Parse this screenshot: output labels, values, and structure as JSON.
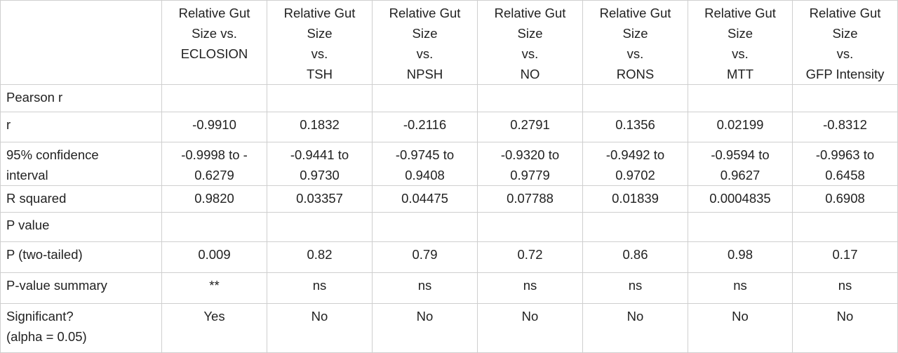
{
  "table": {
    "header": [
      [
        "Relative Gut",
        "Size vs.",
        "ECLOSION"
      ],
      [
        "Relative Gut",
        "Size",
        "vs.",
        "TSH"
      ],
      [
        "Relative Gut",
        "Size",
        "vs.",
        "NPSH"
      ],
      [
        "Relative Gut",
        "Size",
        "vs.",
        "NO"
      ],
      [
        "Relative Gut",
        "Size",
        "vs.",
        "RONS"
      ],
      [
        "Relative Gut",
        "Size",
        "vs.",
        "MTT"
      ],
      [
        "Relative Gut",
        "Size",
        "vs.",
        "GFP Intensity"
      ]
    ],
    "rows": [
      {
        "label": [
          "Pearson r"
        ]
      },
      {
        "label": [
          "r"
        ],
        "cells": [
          [
            "-0.9910"
          ],
          [
            "0.1832"
          ],
          [
            "-0.2116"
          ],
          [
            "0.2791"
          ],
          [
            "0.1356"
          ],
          [
            "0.02199"
          ],
          [
            "-0.8312"
          ]
        ]
      },
      {
        "label": [
          "95% confidence",
          "interval"
        ],
        "cells": [
          [
            "-0.9998 to -",
            "0.6279"
          ],
          [
            "-0.9441 to",
            "0.9730"
          ],
          [
            "-0.9745 to",
            "0.9408"
          ],
          [
            "-0.9320 to",
            "0.9779"
          ],
          [
            "-0.9492 to",
            "0.9702"
          ],
          [
            "-0.9594 to",
            "0.9627"
          ],
          [
            "-0.9963 to",
            "0.6458"
          ]
        ]
      },
      {
        "label": [
          "R squared"
        ],
        "cells": [
          [
            "0.9820"
          ],
          [
            "0.03357"
          ],
          [
            "0.04475"
          ],
          [
            "0.07788"
          ],
          [
            "0.01839"
          ],
          [
            "0.0004835"
          ],
          [
            "0.6908"
          ]
        ]
      },
      {
        "label": [
          "P value"
        ]
      },
      {
        "label": [
          "P (two-tailed)"
        ],
        "cells": [
          [
            "0.009"
          ],
          [
            "0.82"
          ],
          [
            "0.79"
          ],
          [
            "0.72"
          ],
          [
            "0.86"
          ],
          [
            "0.98"
          ],
          [
            "0.17"
          ]
        ]
      },
      {
        "label": [
          "P-value summary"
        ],
        "cells": [
          [
            "**"
          ],
          [
            "ns"
          ],
          [
            "ns"
          ],
          [
            "ns"
          ],
          [
            "ns"
          ],
          [
            "ns"
          ],
          [
            "ns"
          ]
        ]
      },
      {
        "label": [
          "Significant?",
          "(alpha = 0.05)"
        ],
        "cells": [
          [
            "Yes"
          ],
          [
            "No"
          ],
          [
            "No"
          ],
          [
            "No"
          ],
          [
            "No"
          ],
          [
            "No"
          ],
          [
            "No"
          ]
        ]
      }
    ]
  }
}
